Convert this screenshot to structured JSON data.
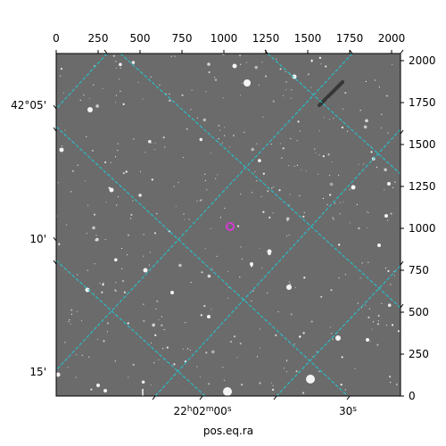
{
  "figure": {
    "xlabel": "pos.eq.ra",
    "top_ticks": [
      "0",
      "250",
      "500",
      "750",
      "1000",
      "1250",
      "1500",
      "1750",
      "2000"
    ],
    "right_ticks": [
      "0",
      "250",
      "500",
      "750",
      "1000",
      "1250",
      "1500",
      "1750",
      "2000"
    ],
    "dec_labels": [
      "42°05'",
      "10'",
      "15'"
    ],
    "ra_labels": [
      "22h02m00s",
      "30s"
    ],
    "pixel_range": [
      0,
      2000
    ],
    "colors": {
      "grid": "#1fc9d6",
      "marker": "#d63ad6",
      "background": "#6c6c6c"
    }
  }
}
